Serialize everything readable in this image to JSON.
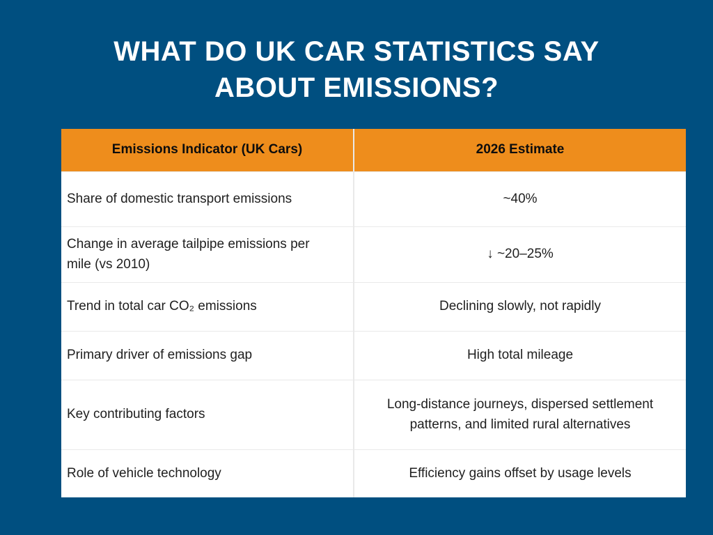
{
  "colors": {
    "background": "#004F80",
    "header_bg": "#EE8D1C",
    "header_text": "#0D0D0D",
    "body_text": "#1F1F1F",
    "table_bg": "#FFFFFF",
    "grid_line": "#E9E9E9",
    "title_text": "#FFFFFF"
  },
  "header": {
    "title_line1": "WHAT DO UK CAR STATISTICS SAY",
    "title_line2": "ABOUT EMISSIONS?"
  },
  "chart_data": {
    "type": "table",
    "title": "WHAT DO UK CAR STATISTICS SAY ABOUT EMISSIONS?",
    "columns": [
      "Emissions Indicator (UK Cars)",
      "2026 Estimate"
    ],
    "rows": [
      [
        "Share of domestic transport emissions",
        "~40%"
      ],
      [
        "Change in average tailpipe emissions per mile (vs 2010)",
        "↓  ~20–25%"
      ],
      [
        "Trend in total car CO₂ emissions",
        "Declining slowly, not rapidly"
      ],
      [
        "Primary driver of emissions gap",
        "High total mileage"
      ],
      [
        "Key contributing factors",
        "Long-distance journeys, dispersed settlement patterns, and limited rural alternatives"
      ],
      [
        "Role of vehicle technology",
        "Efficiency gains offset by usage levels"
      ]
    ]
  }
}
